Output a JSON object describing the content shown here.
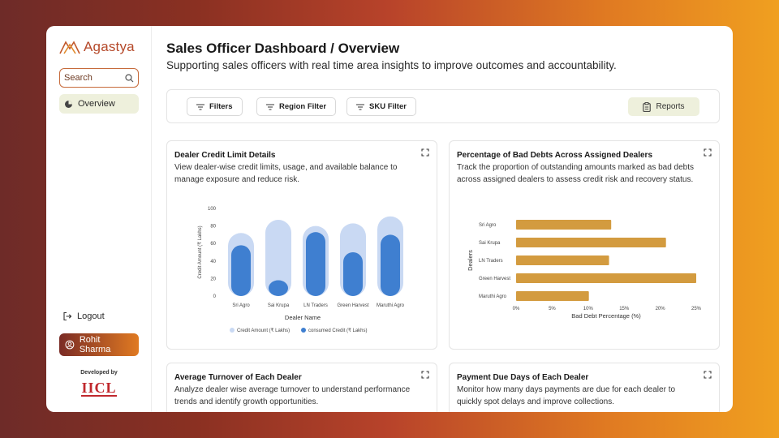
{
  "app": {
    "logo_text": "Agastya"
  },
  "sidebar": {
    "search_placeholder": "Search",
    "nav_overview": "Overview",
    "logout": "Logout",
    "user_name": "Rohit Sharma",
    "developed_by": "Developed by",
    "dev_logo": "IICL"
  },
  "header": {
    "title": "Sales Officer Dashboard / Overview",
    "subtitle": "Supporting sales officers with real time area insights to improve outcomes and accountability."
  },
  "filters": {
    "filters": "Filters",
    "region": "Region Filter",
    "sku": "SKU Filter",
    "reports": "Reports"
  },
  "cards": {
    "credit": {
      "title": "Dealer Credit Limit Details",
      "desc": "View dealer-wise credit limits, usage, and available balance to manage exposure and reduce risk."
    },
    "baddebt": {
      "title": "Percentage of Bad Debts Across Assigned Dealers",
      "desc": "Track the proportion of outstanding amounts marked as bad debts across assigned dealers to assess credit risk and recovery status."
    },
    "turnover": {
      "title": "Average Turnover of Each Dealer",
      "desc": "Analyze dealer wise average turnover to understand performance trends and identify growth opportunities."
    },
    "duedays": {
      "title": "Payment Due Days of Each Dealer",
      "desc": "Monitor how many days payments are due for each dealer to quickly spot delays and improve collections."
    }
  },
  "colors": {
    "credit_limit": "#c9d9f3",
    "consumed": "#3f7fd0",
    "bad_debt": "#d39b3f",
    "brand": "#b5492a"
  },
  "chart_data": [
    {
      "type": "bar",
      "categories": [
        "Sri Agro",
        "Sai Krupa",
        "LN Traders",
        "Green Harvest",
        "Maruthi Agro"
      ],
      "series": [
        {
          "name": "Credit Amount (₹ Lakhs)",
          "values": [
            72,
            87,
            80,
            83,
            91
          ]
        },
        {
          "name": "consumed Credit (₹ Lakhs)",
          "values": [
            58,
            18,
            73,
            50,
            70
          ]
        }
      ],
      "xlabel": "Dealer Name",
      "ylabel": "Credit Amount (₹ Lakhs)",
      "ylim": [
        0,
        100
      ],
      "yticks": [
        "100",
        "80",
        "60",
        "40",
        "20",
        "0"
      ],
      "legend": "bottom"
    },
    {
      "type": "bar",
      "orientation": "horizontal",
      "categories": [
        "Sri Agro",
        "Sai Krupa",
        "LN Traders",
        "Green Harvest",
        "Maruthi Agro"
      ],
      "values": [
        13.2,
        20.8,
        12.9,
        25,
        10.1
      ],
      "xlabel": "Bad Debt Percentage (%)",
      "ylabel": "Dealers",
      "xlim": [
        0,
        25
      ],
      "xticks": [
        "0%",
        "5%",
        "10%",
        "15%",
        "20%",
        "25%"
      ]
    }
  ]
}
